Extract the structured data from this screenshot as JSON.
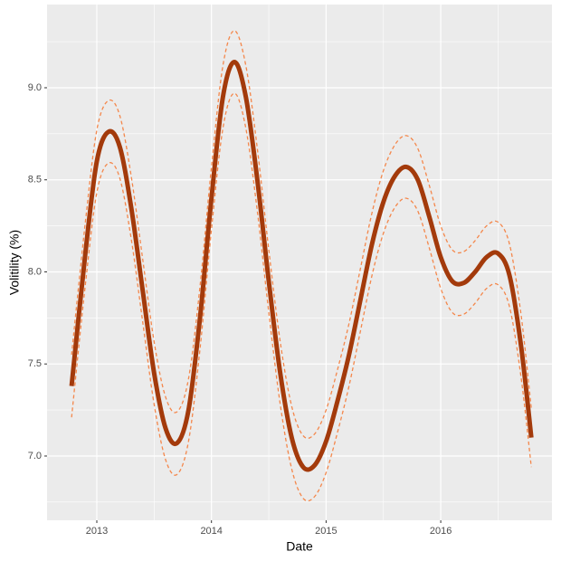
{
  "chart_data": {
    "type": "line",
    "x_label": "Date",
    "y_label": "Volitility (%)",
    "x": [
      2012.78,
      2012.9,
      2013.0,
      2013.1,
      2013.2,
      2013.3,
      2013.4,
      2013.5,
      2013.6,
      2013.7,
      2013.8,
      2013.9,
      2014.0,
      2014.1,
      2014.2,
      2014.3,
      2014.4,
      2014.5,
      2014.6,
      2014.7,
      2014.8,
      2014.9,
      2015.0,
      2015.1,
      2015.2,
      2015.3,
      2015.4,
      2015.5,
      2015.6,
      2015.7,
      2015.8,
      2015.9,
      2016.0,
      2016.1,
      2016.2,
      2016.3,
      2016.4,
      2016.5,
      2016.6,
      2016.7,
      2016.79
    ],
    "series": [
      {
        "color": "#f4874b",
        "dashed": true,
        "width": 1.3,
        "values": [
          7.55,
          8.27,
          8.77,
          8.93,
          8.85,
          8.52,
          8.07,
          7.62,
          7.32,
          7.24,
          7.42,
          7.92,
          8.57,
          9.12,
          9.31,
          9.12,
          8.67,
          8.12,
          7.62,
          7.27,
          7.11,
          7.12,
          7.25,
          7.47,
          7.72,
          8.02,
          8.32,
          8.55,
          8.69,
          8.74,
          8.67,
          8.47,
          8.25,
          8.12,
          8.11,
          8.17,
          8.25,
          8.27,
          8.15,
          7.77,
          7.26
        ]
      },
      {
        "color": "#f4874b",
        "dashed": true,
        "width": 1.3,
        "values": [
          7.21,
          7.93,
          8.43,
          8.59,
          8.51,
          8.18,
          7.73,
          7.28,
          6.98,
          6.9,
          7.08,
          7.58,
          8.23,
          8.78,
          8.97,
          8.78,
          8.33,
          7.78,
          7.28,
          6.93,
          6.77,
          6.78,
          6.91,
          7.13,
          7.38,
          7.68,
          7.98,
          8.21,
          8.35,
          8.4,
          8.33,
          8.13,
          7.91,
          7.78,
          7.77,
          7.83,
          7.91,
          7.93,
          7.81,
          7.43,
          6.94
        ]
      },
      {
        "color": "#a33a0b",
        "dashed": false,
        "width": 5,
        "values": [
          7.38,
          8.1,
          8.6,
          8.76,
          8.68,
          8.35,
          7.9,
          7.45,
          7.15,
          7.07,
          7.25,
          7.75,
          8.4,
          8.95,
          9.14,
          8.95,
          8.5,
          7.95,
          7.45,
          7.1,
          6.94,
          6.95,
          7.08,
          7.3,
          7.55,
          7.85,
          8.15,
          8.38,
          8.52,
          8.57,
          8.5,
          8.3,
          8.08,
          7.95,
          7.94,
          8.0,
          8.08,
          8.1,
          7.98,
          7.6,
          7.1
        ]
      }
    ],
    "xlim": [
      2012.566,
      2016.97
    ],
    "xticks": [
      2013,
      2014,
      2015,
      2016
    ],
    "x_minor_ticks": [
      2013.5,
      2014.5,
      2015.5,
      2016.5
    ],
    "ylim": [
      6.651,
      9.452
    ],
    "yticks": [
      {
        "value": 7,
        "label": "7.0"
      },
      7.5,
      {
        "value": 8,
        "label": "8.0"
      },
      8.5,
      {
        "value": 9,
        "label": "9.0"
      }
    ],
    "y_minor_ticks": [
      6.75,
      7.25,
      7.75,
      8.25,
      8.75,
      9.25
    ],
    "grid": true,
    "panel_color": "#ebebeb"
  }
}
